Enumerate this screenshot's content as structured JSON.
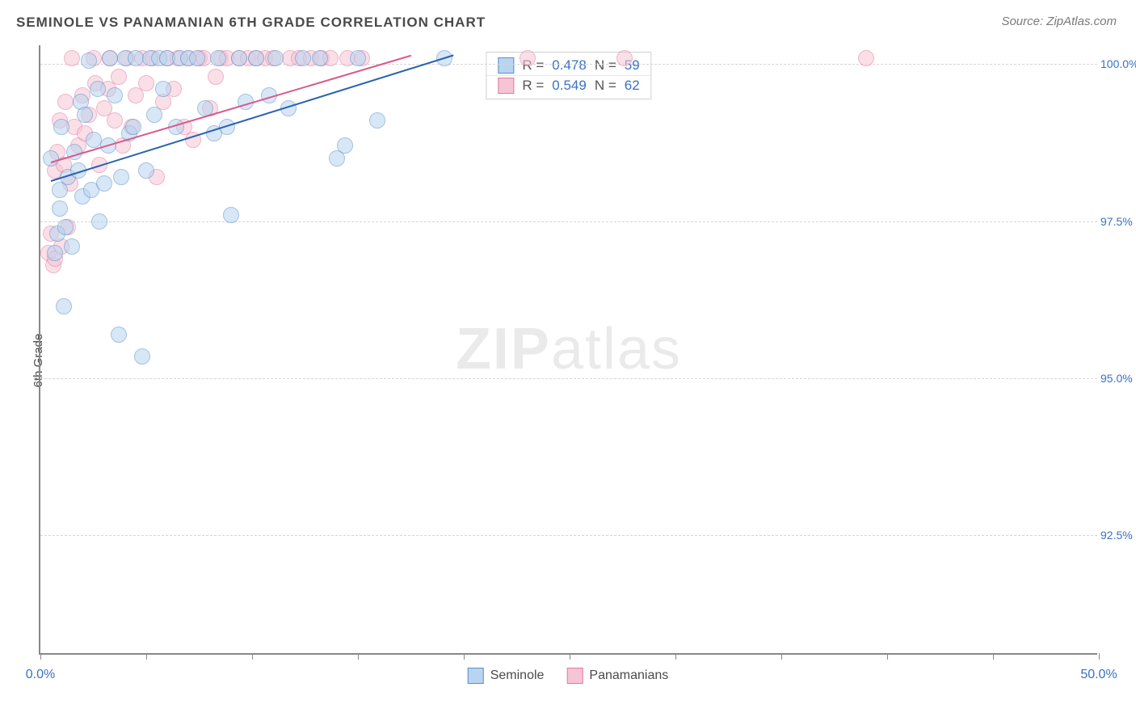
{
  "title": "SEMINOLE VS PANAMANIAN 6TH GRADE CORRELATION CHART",
  "source": "Source: ZipAtlas.com",
  "ylabel": "6th Grade",
  "watermark_bold": "ZIP",
  "watermark_light": "atlas",
  "chart": {
    "type": "scatter",
    "xlim": [
      0,
      50
    ],
    "ylim": [
      90.6,
      100.3
    ],
    "x_ticks_major": [
      0,
      5,
      10,
      15,
      20,
      25,
      30,
      35,
      40,
      45,
      50
    ],
    "x_tick_labels": [
      {
        "x": 0,
        "label": "0.0%"
      },
      {
        "x": 50,
        "label": "50.0%"
      }
    ],
    "y_gridlines": [
      92.5,
      95.0,
      97.5,
      100.0
    ],
    "y_tick_labels": [
      "92.5%",
      "95.0%",
      "97.5%",
      "100.0%"
    ],
    "background_color": "#ffffff",
    "grid_color": "#d5d5d5",
    "axis_color": "#888888",
    "marker_radius": 10,
    "marker_opacity": 0.55,
    "series": [
      {
        "name": "Seminole",
        "fill": "#b8d4f0",
        "stroke": "#5a8fc8",
        "R": "0.478",
        "N": "59",
        "trend": {
          "x1": 0.5,
          "y1": 98.15,
          "x2": 19.5,
          "y2": 100.15,
          "color": "#2a62b0",
          "width": 2
        },
        "points": [
          {
            "x": 0.5,
            "y": 98.5
          },
          {
            "x": 0.7,
            "y": 97.0
          },
          {
            "x": 0.8,
            "y": 97.3
          },
          {
            "x": 0.9,
            "y": 98.0
          },
          {
            "x": 0.9,
            "y": 97.7
          },
          {
            "x": 1.0,
            "y": 99.0
          },
          {
            "x": 1.1,
            "y": 96.15
          },
          {
            "x": 1.2,
            "y": 97.4
          },
          {
            "x": 1.3,
            "y": 98.2
          },
          {
            "x": 1.5,
            "y": 97.1
          },
          {
            "x": 1.6,
            "y": 98.6
          },
          {
            "x": 1.8,
            "y": 98.3
          },
          {
            "x": 1.9,
            "y": 99.4
          },
          {
            "x": 2.0,
            "y": 97.9
          },
          {
            "x": 2.1,
            "y": 99.2
          },
          {
            "x": 2.3,
            "y": 100.05
          },
          {
            "x": 2.4,
            "y": 98.0
          },
          {
            "x": 2.5,
            "y": 98.8
          },
          {
            "x": 2.7,
            "y": 99.6
          },
          {
            "x": 2.8,
            "y": 97.5
          },
          {
            "x": 3.0,
            "y": 98.1
          },
          {
            "x": 3.2,
            "y": 98.7
          },
          {
            "x": 3.3,
            "y": 100.1
          },
          {
            "x": 3.5,
            "y": 99.5
          },
          {
            "x": 3.7,
            "y": 95.7
          },
          {
            "x": 3.8,
            "y": 98.2
          },
          {
            "x": 4.0,
            "y": 100.1
          },
          {
            "x": 4.2,
            "y": 98.9
          },
          {
            "x": 4.4,
            "y": 99.0
          },
          {
            "x": 4.5,
            "y": 100.1
          },
          {
            "x": 4.8,
            "y": 95.35
          },
          {
            "x": 5.0,
            "y": 98.3
          },
          {
            "x": 5.2,
            "y": 100.1
          },
          {
            "x": 5.4,
            "y": 99.2
          },
          {
            "x": 5.6,
            "y": 100.1
          },
          {
            "x": 5.8,
            "y": 99.6
          },
          {
            "x": 6.0,
            "y": 100.1
          },
          {
            "x": 6.4,
            "y": 99.0
          },
          {
            "x": 6.6,
            "y": 100.1
          },
          {
            "x": 7.0,
            "y": 100.1
          },
          {
            "x": 7.4,
            "y": 100.1
          },
          {
            "x": 7.8,
            "y": 99.3
          },
          {
            "x": 8.2,
            "y": 98.9
          },
          {
            "x": 8.4,
            "y": 100.1
          },
          {
            "x": 8.8,
            "y": 99.0
          },
          {
            "x": 9.0,
            "y": 97.6
          },
          {
            "x": 9.4,
            "y": 100.1
          },
          {
            "x": 9.7,
            "y": 99.4
          },
          {
            "x": 10.2,
            "y": 100.1
          },
          {
            "x": 10.8,
            "y": 99.5
          },
          {
            "x": 11.1,
            "y": 100.1
          },
          {
            "x": 11.7,
            "y": 99.3
          },
          {
            "x": 12.4,
            "y": 100.1
          },
          {
            "x": 13.2,
            "y": 100.1
          },
          {
            "x": 14.0,
            "y": 98.5
          },
          {
            "x": 14.4,
            "y": 98.7
          },
          {
            "x": 15.0,
            "y": 100.1
          },
          {
            "x": 15.9,
            "y": 99.1
          },
          {
            "x": 19.1,
            "y": 100.1
          }
        ]
      },
      {
        "name": "Panamanians",
        "fill": "#f6c5d5",
        "stroke": "#e07ba0",
        "R": "0.549",
        "N": "62",
        "trend": {
          "x1": 0.5,
          "y1": 98.45,
          "x2": 17.5,
          "y2": 100.15,
          "color": "#d85a8a",
          "width": 2
        },
        "points": [
          {
            "x": 0.4,
            "y": 97.0
          },
          {
            "x": 0.5,
            "y": 97.3
          },
          {
            "x": 0.6,
            "y": 96.8
          },
          {
            "x": 0.7,
            "y": 98.3
          },
          {
            "x": 0.7,
            "y": 96.9
          },
          {
            "x": 0.8,
            "y": 98.6
          },
          {
            "x": 0.9,
            "y": 99.1
          },
          {
            "x": 1.0,
            "y": 97.1
          },
          {
            "x": 1.1,
            "y": 98.4
          },
          {
            "x": 1.2,
            "y": 99.4
          },
          {
            "x": 1.3,
            "y": 97.4
          },
          {
            "x": 1.4,
            "y": 98.1
          },
          {
            "x": 1.5,
            "y": 100.1
          },
          {
            "x": 1.6,
            "y": 99.0
          },
          {
            "x": 1.8,
            "y": 98.7
          },
          {
            "x": 2.0,
            "y": 99.5
          },
          {
            "x": 2.1,
            "y": 98.9
          },
          {
            "x": 2.3,
            "y": 99.2
          },
          {
            "x": 2.5,
            "y": 100.1
          },
          {
            "x": 2.6,
            "y": 99.7
          },
          {
            "x": 2.8,
            "y": 98.4
          },
          {
            "x": 3.0,
            "y": 99.3
          },
          {
            "x": 3.2,
            "y": 99.6
          },
          {
            "x": 3.3,
            "y": 100.1
          },
          {
            "x": 3.5,
            "y": 99.1
          },
          {
            "x": 3.7,
            "y": 99.8
          },
          {
            "x": 3.9,
            "y": 98.7
          },
          {
            "x": 4.1,
            "y": 100.1
          },
          {
            "x": 4.3,
            "y": 99.0
          },
          {
            "x": 4.5,
            "y": 99.5
          },
          {
            "x": 4.8,
            "y": 100.1
          },
          {
            "x": 5.0,
            "y": 99.7
          },
          {
            "x": 5.3,
            "y": 100.1
          },
          {
            "x": 5.5,
            "y": 98.2
          },
          {
            "x": 5.8,
            "y": 99.4
          },
          {
            "x": 6.0,
            "y": 100.1
          },
          {
            "x": 6.3,
            "y": 99.6
          },
          {
            "x": 6.5,
            "y": 100.1
          },
          {
            "x": 6.8,
            "y": 99.0
          },
          {
            "x": 7.0,
            "y": 100.1
          },
          {
            "x": 7.2,
            "y": 98.8
          },
          {
            "x": 7.5,
            "y": 100.1
          },
          {
            "x": 7.7,
            "y": 100.1
          },
          {
            "x": 8.0,
            "y": 99.3
          },
          {
            "x": 8.3,
            "y": 99.8
          },
          {
            "x": 8.5,
            "y": 100.1
          },
          {
            "x": 8.8,
            "y": 100.1
          },
          {
            "x": 9.4,
            "y": 100.1
          },
          {
            "x": 9.8,
            "y": 100.1
          },
          {
            "x": 10.2,
            "y": 100.1
          },
          {
            "x": 10.6,
            "y": 100.1
          },
          {
            "x": 11.0,
            "y": 100.1
          },
          {
            "x": 11.8,
            "y": 100.1
          },
          {
            "x": 12.2,
            "y": 100.1
          },
          {
            "x": 12.8,
            "y": 100.1
          },
          {
            "x": 13.3,
            "y": 100.1
          },
          {
            "x": 13.7,
            "y": 100.1
          },
          {
            "x": 14.5,
            "y": 100.1
          },
          {
            "x": 15.2,
            "y": 100.1
          },
          {
            "x": 23.0,
            "y": 100.1
          },
          {
            "x": 27.6,
            "y": 100.1
          },
          {
            "x": 39.0,
            "y": 100.1
          }
        ]
      }
    ]
  },
  "legend_top": {
    "r_label": "R =",
    "n_label": "N ="
  },
  "legend_bottom": [
    {
      "label": "Seminole",
      "fill": "#b8d4f0",
      "stroke": "#5a8fc8"
    },
    {
      "label": "Panamanians",
      "fill": "#f6c5d5",
      "stroke": "#e07ba0"
    }
  ]
}
